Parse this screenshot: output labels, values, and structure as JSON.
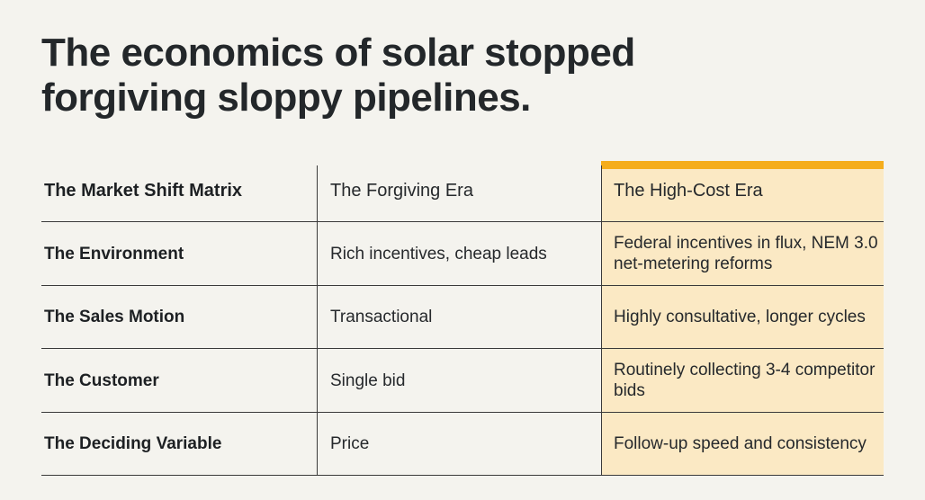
{
  "title": {
    "line1": "The economics of solar stopped",
    "line2": "forgiving sloppy pipelines."
  },
  "matrix": {
    "header": [
      "The Market Shift Matrix",
      "The Forgiving Era",
      "The High-Cost Era"
    ],
    "rows": [
      {
        "label": "The Environment",
        "forgiving": "Rich incentives, cheap leads",
        "high_cost": "Federal incentives in flux, NEM 3.0 net-metering reforms"
      },
      {
        "label": "The Sales Motion",
        "forgiving": "Transactional",
        "high_cost": "Highly consultative, longer cycles"
      },
      {
        "label": "The Customer",
        "forgiving": "Single bid",
        "high_cost": "Routinely collecting 3-4 competitor bids"
      },
      {
        "label": "The Deciding Variable",
        "forgiving": "Price",
        "high_cost": "Follow-up speed and consistency"
      }
    ],
    "colors": {
      "highlight_bg": "#fbe9c4",
      "highlight_bar": "#f5ad1c",
      "background": "#f4f3ee"
    }
  }
}
